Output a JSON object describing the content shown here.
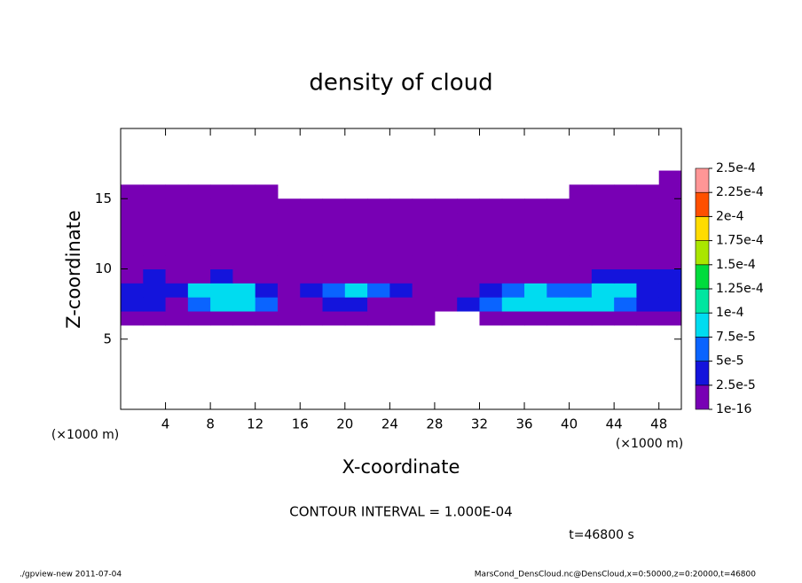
{
  "chart_data": {
    "type": "heatmap",
    "title": "density of cloud",
    "xlabel": "X-coordinate",
    "ylabel": "Z-coordinate",
    "xunit": "(×1000 m)",
    "yunit": "(×1000 m)",
    "note": "CONTOUR INTERVAL = 1.000E-04",
    "time": "t=46800 s",
    "footer_left": "./gpview-new  2011-07-04",
    "footer_right": "MarsCond_DensCloud.nc@DensCloud,x=0:50000,z=0:20000,t=46800",
    "xlim": [
      0,
      50
    ],
    "ylim": [
      0,
      20
    ],
    "xticks": [
      4,
      8,
      12,
      16,
      20,
      24,
      28,
      32,
      36,
      40,
      44,
      48
    ],
    "yticks": [
      5,
      10,
      15
    ],
    "x": [
      1,
      3,
      5,
      7,
      9,
      11,
      13,
      15,
      17,
      19,
      21,
      23,
      25,
      27,
      29,
      31,
      33,
      35,
      37,
      39,
      41,
      43,
      45,
      47,
      49
    ],
    "y": [
      6.5,
      7.5,
      8.5,
      9.5,
      10.5,
      11.5,
      12.5,
      13.5,
      14.5,
      15.5,
      16.5
    ],
    "values": [
      [
        1e-05,
        1e-05,
        1e-05,
        1e-05,
        1e-05,
        1e-05,
        1e-05,
        1e-05,
        1e-05,
        1e-05,
        1e-05,
        1e-05,
        1e-05,
        1e-05,
        null,
        null,
        1e-05,
        1e-05,
        1e-05,
        1e-05,
        1e-05,
        1e-05,
        1e-05,
        1e-05,
        1e-05
      ],
      [
        3e-05,
        3e-05,
        1e-05,
        6e-05,
        8e-05,
        8e-05,
        6e-05,
        1e-05,
        1e-05,
        3e-05,
        3e-05,
        1e-05,
        1e-05,
        1e-05,
        1e-05,
        3e-05,
        6e-05,
        8e-05,
        8e-05,
        8e-05,
        8e-05,
        8e-05,
        6e-05,
        3e-05,
        3e-05
      ],
      [
        3e-05,
        3e-05,
        3e-05,
        8e-05,
        8e-05,
        8e-05,
        3e-05,
        1e-05,
        3e-05,
        6e-05,
        8e-05,
        6e-05,
        3e-05,
        1e-05,
        1e-05,
        1e-05,
        3e-05,
        6e-05,
        8e-05,
        6e-05,
        6e-05,
        8e-05,
        8e-05,
        3e-05,
        3e-05
      ],
      [
        1e-05,
        3e-05,
        1e-05,
        1e-05,
        3e-05,
        1e-05,
        1e-05,
        1e-05,
        1e-05,
        1e-05,
        1e-05,
        1e-05,
        1e-05,
        1e-05,
        1e-05,
        1e-05,
        1e-05,
        1e-05,
        1e-05,
        1e-05,
        1e-05,
        3e-05,
        3e-05,
        3e-05,
        3e-05
      ],
      [
        1e-05,
        1e-05,
        1e-05,
        1e-05,
        1e-05,
        1e-05,
        1e-05,
        1e-05,
        1e-05,
        1e-05,
        1e-05,
        1e-05,
        1e-05,
        1e-05,
        1e-05,
        1e-05,
        1e-05,
        1e-05,
        1e-05,
        1e-05,
        1e-05,
        1e-05,
        1e-05,
        1e-05,
        1e-05
      ],
      [
        1e-05,
        1e-05,
        1e-05,
        1e-05,
        1e-05,
        1e-05,
        1e-05,
        1e-05,
        1e-05,
        1e-05,
        1e-05,
        1e-05,
        1e-05,
        1e-05,
        1e-05,
        1e-05,
        1e-05,
        1e-05,
        1e-05,
        1e-05,
        1e-05,
        1e-05,
        1e-05,
        1e-05,
        1e-05
      ],
      [
        1e-05,
        1e-05,
        1e-05,
        1e-05,
        1e-05,
        1e-05,
        1e-05,
        1e-05,
        1e-05,
        1e-05,
        1e-05,
        1e-05,
        1e-05,
        1e-05,
        1e-05,
        1e-05,
        1e-05,
        1e-05,
        1e-05,
        1e-05,
        1e-05,
        1e-05,
        1e-05,
        1e-05,
        1e-05
      ],
      [
        1e-05,
        1e-05,
        1e-05,
        1e-05,
        1e-05,
        1e-05,
        1e-05,
        1e-05,
        1e-05,
        1e-05,
        1e-05,
        1e-05,
        1e-05,
        1e-05,
        1e-05,
        1e-05,
        1e-05,
        1e-05,
        1e-05,
        1e-05,
        1e-05,
        1e-05,
        1e-05,
        1e-05,
        1e-05
      ],
      [
        1e-05,
        1e-05,
        1e-05,
        1e-05,
        1e-05,
        1e-05,
        1e-05,
        1e-05,
        1e-05,
        1e-05,
        1e-05,
        1e-05,
        1e-05,
        1e-05,
        1e-05,
        1e-05,
        1e-05,
        1e-05,
        1e-05,
        1e-05,
        1e-05,
        1e-05,
        1e-05,
        1e-05,
        1e-05
      ],
      [
        1e-05,
        1e-05,
        1e-05,
        1e-05,
        1e-05,
        1e-05,
        1e-05,
        null,
        null,
        null,
        null,
        null,
        null,
        null,
        null,
        null,
        null,
        null,
        null,
        null,
        1e-05,
        1e-05,
        1e-05,
        1e-05,
        1e-05
      ],
      [
        null,
        null,
        null,
        null,
        null,
        null,
        null,
        null,
        null,
        null,
        null,
        null,
        null,
        null,
        null,
        null,
        null,
        null,
        null,
        null,
        null,
        null,
        null,
        null,
        1e-05
      ]
    ],
    "colorbar": {
      "ticks": [
        {
          "value": 1e-16,
          "label": "1e-16"
        },
        {
          "value": 2.5e-05,
          "label": "2.5e-5"
        },
        {
          "value": 5e-05,
          "label": "5e-5"
        },
        {
          "value": 7.5e-05,
          "label": "7.5e-5"
        },
        {
          "value": 0.0001,
          "label": "1e-4"
        },
        {
          "value": 0.000125,
          "label": "1.25e-4"
        },
        {
          "value": 0.00015,
          "label": "1.5e-4"
        },
        {
          "value": 0.000175,
          "label": "1.75e-4"
        },
        {
          "value": 0.0002,
          "label": "2e-4"
        },
        {
          "value": 0.000225,
          "label": "2.25e-4"
        },
        {
          "value": 0.00025,
          "label": "2.5e-4"
        }
      ],
      "colors": [
        "#7800b4",
        "#1414dc",
        "#0a64ff",
        "#00dcf0",
        "#00e6a0",
        "#00dc3c",
        "#aae600",
        "#ffdc00",
        "#ff5000",
        "#ff9696"
      ]
    }
  }
}
